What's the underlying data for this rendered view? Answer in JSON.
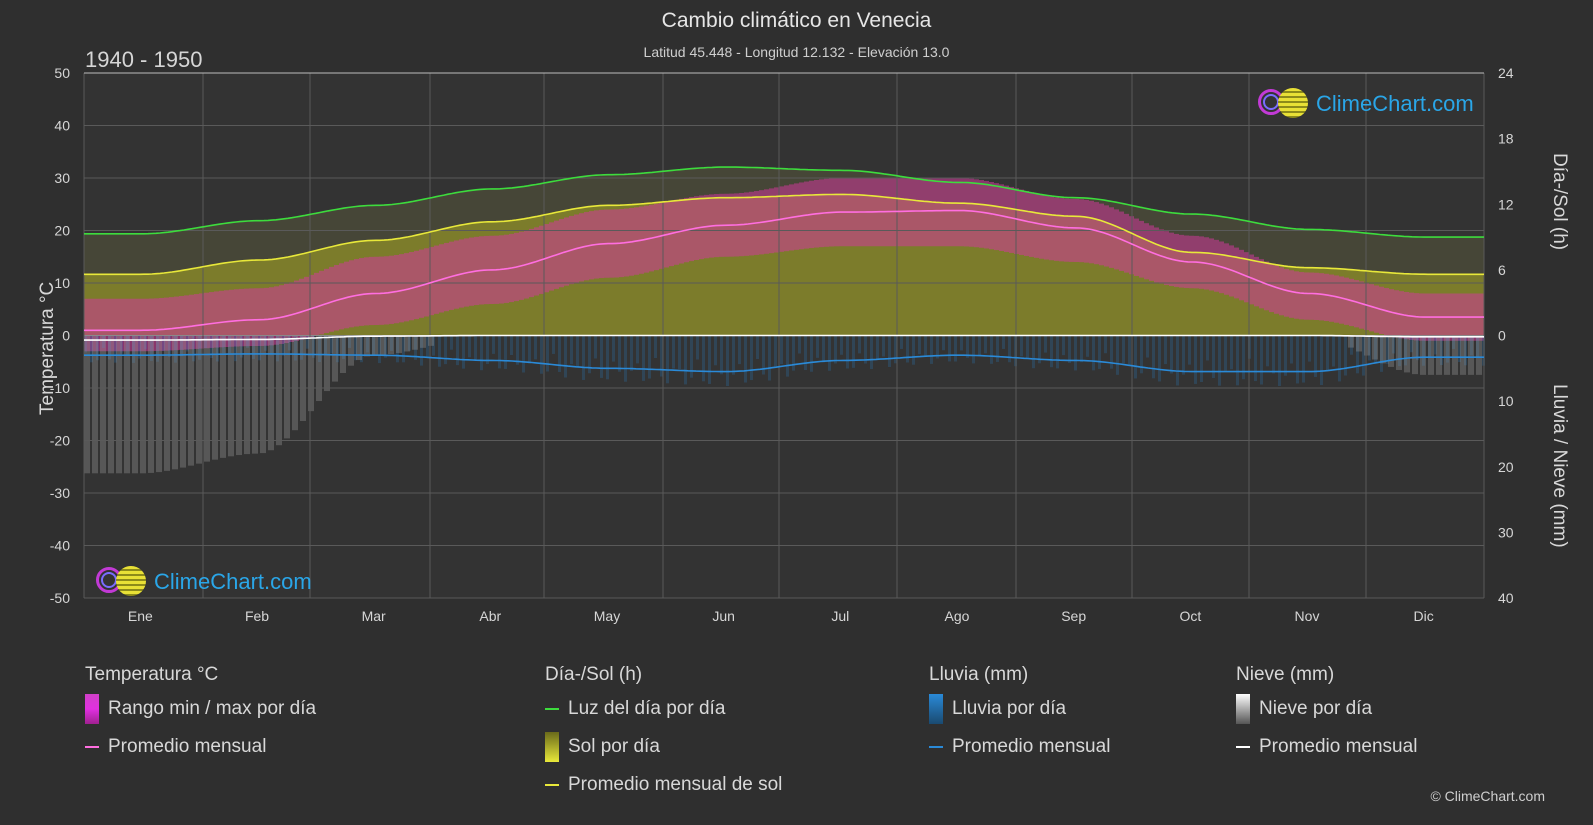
{
  "title": "Cambio climático en Venecia",
  "subtitle": "Latitud 45.448 - Longitud 12.132 - Elevación 13.0",
  "period": "1940 - 1950",
  "copyright": "© ClimeChart.com",
  "brand": "ClimeChart.com",
  "axes": {
    "left_title": "Temperatura °C",
    "right_top_title": "Día-/Sol (h)",
    "right_bottom_title": "Lluvia / Nieve (mm)",
    "left_ticks": [
      "50",
      "40",
      "30",
      "20",
      "10",
      "0",
      "-10",
      "-20",
      "-30",
      "-40",
      "-50"
    ],
    "right_top_ticks": [
      "24",
      "18",
      "12",
      "6",
      "0"
    ],
    "right_bottom_ticks": [
      "10",
      "20",
      "30",
      "40"
    ]
  },
  "legend": {
    "temperature": {
      "title": "Temperatura °C",
      "range_label": "Rango min / max por día",
      "avg_label": "Promedio mensual"
    },
    "daylight": {
      "title": "Día-/Sol (h)",
      "daylight_label": "Luz del día por día",
      "sun_label": "Sol por día",
      "sun_avg_label": "Promedio mensual de sol"
    },
    "rain": {
      "title": "Lluvia (mm)",
      "rain_label": "Lluvia por día",
      "avg_label": "Promedio mensual"
    },
    "snow": {
      "title": "Nieve (mm)",
      "snow_label": "Nieve por día",
      "avg_label": "Promedio mensual"
    }
  },
  "colors": {
    "background": "#2f2f2f",
    "daylight": "#3ddc3d",
    "sunshine_avg": "#e8e83a",
    "sunshine_fill": "#8a8a2a",
    "temp_avg": "#ff6ee0",
    "temp_range": "#d0389a",
    "rain": "#2a8ad8",
    "snow": "#ffffff"
  },
  "chart_data": {
    "type": "line",
    "categories": [
      "Ene",
      "Feb",
      "Mar",
      "Abr",
      "May",
      "Jun",
      "Jul",
      "Ago",
      "Sep",
      "Oct",
      "Nov",
      "Dic"
    ],
    "temperature_ylim": [
      -50,
      50
    ],
    "hours_ylim": [
      0,
      24
    ],
    "precip_ylim": [
      0,
      40
    ],
    "series": [
      {
        "name": "Luz del día por día",
        "axis": "hours",
        "values": [
          9.3,
          10.5,
          11.9,
          13.4,
          14.7,
          15.4,
          15.1,
          14.0,
          12.6,
          11.1,
          9.7,
          9.0
        ]
      },
      {
        "name": "Promedio mensual de sol",
        "axis": "hours",
        "values": [
          5.6,
          6.9,
          8.7,
          10.4,
          11.9,
          12.6,
          12.9,
          12.1,
          10.9,
          7.6,
          6.2,
          5.6
        ]
      },
      {
        "name": "Promedio mensual",
        "group": "temperature",
        "axis": "temperature",
        "values": [
          1.0,
          3.0,
          8.0,
          12.5,
          17.5,
          21.0,
          23.5,
          23.8,
          20.5,
          14.0,
          8.0,
          3.5
        ]
      },
      {
        "name": "Rango min / max por día",
        "axis": "temperature",
        "min": [
          -3,
          -2,
          2,
          6,
          11,
          15,
          17,
          17,
          14,
          9,
          3,
          -1
        ],
        "max": [
          7,
          9,
          15,
          19,
          24,
          27,
          30,
          30,
          26,
          19,
          12,
          8
        ]
      },
      {
        "name": "Promedio mensual",
        "group": "rain",
        "axis": "precip",
        "values": [
          3.0,
          2.8,
          3.0,
          3.8,
          5.0,
          5.5,
          3.8,
          3.0,
          3.8,
          5.5,
          5.5,
          3.3
        ]
      },
      {
        "name": "Promedio mensual",
        "group": "snow",
        "axis": "precip",
        "values": [
          0.7,
          0.6,
          0.1,
          0,
          0,
          0,
          0,
          0,
          0,
          0,
          0,
          0.2
        ]
      }
    ],
    "grid": true
  }
}
